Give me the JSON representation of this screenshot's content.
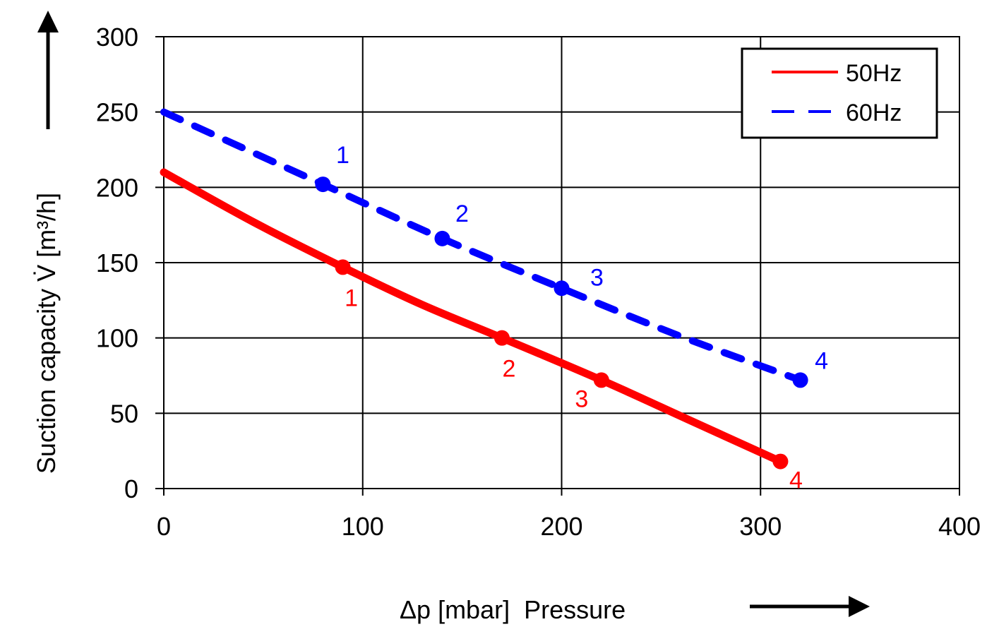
{
  "chart_data": {
    "type": "line",
    "title": "",
    "xlabel": "Δp [mbar]  Pressure",
    "ylabel": "Suction capacity V̇ [m³/h]",
    "xlim": [
      0,
      400
    ],
    "ylim": [
      0,
      300
    ],
    "xticks": [
      0,
      100,
      200,
      300,
      400
    ],
    "yticks": [
      0,
      50,
      100,
      150,
      200,
      250,
      300
    ],
    "grid": true,
    "legend_position": "top-right",
    "series": [
      {
        "name": "50Hz",
        "color": "#ff0000",
        "style": "solid",
        "curve": [
          [
            0,
            210
          ],
          [
            45,
            177
          ],
          [
            90,
            147
          ],
          [
            130,
            122
          ],
          [
            170,
            100
          ],
          [
            220,
            72
          ],
          [
            265,
            45
          ],
          [
            310,
            18
          ]
        ],
        "points": [
          {
            "label": "1",
            "x": 90,
            "y": 147
          },
          {
            "label": "2",
            "x": 170,
            "y": 100
          },
          {
            "label": "3",
            "x": 220,
            "y": 72
          },
          {
            "label": "4",
            "x": 310,
            "y": 18
          }
        ]
      },
      {
        "name": "60Hz",
        "color": "#0000ff",
        "style": "dashed",
        "curve": [
          [
            0,
            250
          ],
          [
            80,
            202
          ],
          [
            140,
            166
          ],
          [
            200,
            133
          ],
          [
            260,
            101
          ],
          [
            320,
            72
          ]
        ],
        "points": [
          {
            "label": "1",
            "x": 80,
            "y": 202
          },
          {
            "label": "2",
            "x": 140,
            "y": 166
          },
          {
            "label": "3",
            "x": 200,
            "y": 133
          },
          {
            "label": "4",
            "x": 320,
            "y": 72
          }
        ]
      }
    ]
  }
}
